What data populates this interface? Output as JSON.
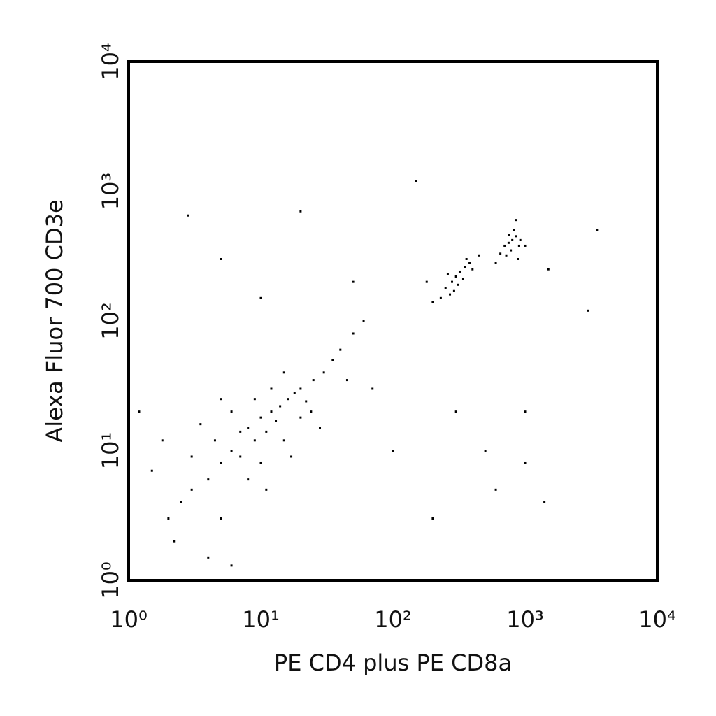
{
  "chart_data": {
    "type": "scatter",
    "xlabel": "PE CD4 plus PE CD8a",
    "ylabel": "Alexa Fluor 700 CD3e",
    "xlog": true,
    "ylog": true,
    "color": "#000000",
    "xlim": [
      1,
      10000
    ],
    "ylim": [
      1,
      10000
    ],
    "xticks": [
      {
        "value": 1,
        "label": "10⁰"
      },
      {
        "value": 10,
        "label": "10¹"
      },
      {
        "value": 100,
        "label": "10²"
      },
      {
        "value": 1000,
        "label": "10³"
      },
      {
        "value": 10000,
        "label": "10⁴"
      }
    ],
    "yticks": [
      {
        "value": 1,
        "label": "10⁰"
      },
      {
        "value": 10,
        "label": "10¹"
      },
      {
        "value": 100,
        "label": "10²"
      },
      {
        "value": 1000,
        "label": "10³"
      },
      {
        "value": 10000,
        "label": "10⁴"
      }
    ],
    "x": [
      8,
      10,
      12,
      9,
      6,
      5,
      4,
      7,
      11,
      14,
      16,
      18,
      20,
      13,
      3,
      2.5,
      4.5,
      6,
      8,
      10,
      15,
      20,
      25,
      30,
      35,
      22,
      3,
      2,
      5,
      12,
      9,
      7,
      15,
      40,
      50,
      60,
      28,
      1.5,
      1.8,
      2.2,
      4,
      6,
      3.5,
      11,
      17,
      24,
      45,
      1.2,
      5,
      250,
      280,
      300,
      320,
      350,
      270,
      230,
      310,
      380,
      200,
      260,
      340,
      290,
      360,
      400,
      180,
      450,
      700,
      750,
      800,
      850,
      900,
      780,
      820,
      720,
      880,
      760,
      650,
      920,
      600,
      1000,
      850,
      2.8,
      150,
      20,
      1500,
      3000,
      3500,
      1000,
      1400,
      600,
      200,
      50,
      10,
      5,
      300,
      500,
      1000,
      100,
      70
    ],
    "y": [
      15,
      18,
      20,
      12,
      10,
      8,
      6,
      9,
      14,
      22,
      25,
      28,
      30,
      17,
      5,
      4,
      12,
      20,
      6,
      8,
      12,
      18,
      35,
      40,
      50,
      24,
      9,
      3,
      3,
      30,
      25,
      14,
      40,
      60,
      80,
      100,
      15,
      7,
      12,
      2,
      1.5,
      1.3,
      16,
      5,
      9,
      20,
      35,
      20,
      25,
      180,
      200,
      220,
      240,
      260,
      160,
      150,
      190,
      280,
      140,
      230,
      210,
      170,
      300,
      250,
      200,
      320,
      380,
      400,
      420,
      450,
      380,
      350,
      500,
      320,
      300,
      460,
      330,
      420,
      280,
      380,
      600,
      650,
      1200,
      700,
      250,
      120,
      500,
      20,
      4,
      5,
      3,
      200,
      150,
      300,
      20,
      10,
      8,
      10,
      30
    ]
  }
}
